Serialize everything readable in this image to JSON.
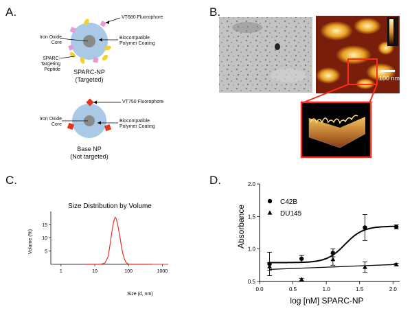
{
  "panels": {
    "a": {
      "letter": "A.",
      "targeted": {
        "fluorophore": "VT680 Fluorophore",
        "core": "Iron Oxide\nCore",
        "coating": "Biocompatible\nPolymer Coating",
        "peptide": "SPARC-Targeting\nPeptide",
        "name": "SPARC-NP",
        "status": "(Targeted)"
      },
      "base": {
        "fluorophore": "VT750 Fluorophore",
        "core": "Iron Oxide\nCore",
        "coating": "Biocompatible\nPolymer Coating",
        "name": "Base NP",
        "status": "(Not targeted)"
      }
    },
    "b": {
      "letter": "B.",
      "scalebar": "100 nm"
    },
    "c": {
      "letter": "C."
    },
    "d": {
      "letter": "D."
    }
  },
  "chart_data": [
    {
      "type": "line",
      "title": "Size Distribution by Volume",
      "xlabel": "Size (d, nm)",
      "ylabel": "Volume (%)",
      "xscale": "log",
      "xlim": [
        0.5,
        1500
      ],
      "ylim": [
        0,
        20
      ],
      "xticks": [
        1,
        10,
        100,
        1000
      ],
      "yticks": [
        5,
        10,
        15
      ],
      "color": "#e8302a",
      "series": [
        {
          "x": [
            5,
            15,
            20,
            25,
            28,
            32,
            36,
            40,
            43,
            47,
            52,
            57,
            62,
            68,
            75,
            82,
            90,
            100,
            120,
            150,
            500
          ],
          "y": [
            0,
            0,
            0.5,
            3,
            7,
            12,
            16,
            17.8,
            17.3,
            15.5,
            12.5,
            9.5,
            6.5,
            4,
            2.2,
            1,
            0.4,
            0.1,
            0,
            0,
            0
          ]
        }
      ]
    },
    {
      "type": "scatter",
      "xlabel": "log [nM] SPARC-NP",
      "ylabel": "Absorbance",
      "xlim": [
        0.0,
        2.1
      ],
      "ylim": [
        0.5,
        2.0
      ],
      "xticks": [
        "0.0",
        "0.5",
        "1.0",
        "1.5",
        "2.0"
      ],
      "yticks": [
        "0.5",
        "1.0",
        "1.5",
        "2.0"
      ],
      "legend_position": "top-left",
      "series": [
        {
          "name": "C42B",
          "marker": "circle",
          "points": [
            {
              "x": 0.15,
              "y": 0.77,
              "err": 0.18
            },
            {
              "x": 0.63,
              "y": 0.85,
              "err": 0.05
            },
            {
              "x": 1.1,
              "y": 0.94,
              "err": 0.06
            },
            {
              "x": 1.58,
              "y": 1.33,
              "err": 0.2
            },
            {
              "x": 2.05,
              "y": 1.34,
              "err": 0.03
            }
          ],
          "fit": {
            "bottom": 0.79,
            "top": 1.35,
            "logEC50": 1.28,
            "hill": 3.2
          }
        },
        {
          "name": "DU145",
          "marker": "triangle",
          "points": [
            {
              "x": 0.15,
              "y": 0.73,
              "err": 0.06
            },
            {
              "x": 0.63,
              "y": 0.53,
              "err": 0.02
            },
            {
              "x": 1.1,
              "y": 0.84,
              "err": 0.09
            },
            {
              "x": 1.58,
              "y": 0.72,
              "err": 0.08
            },
            {
              "x": 2.05,
              "y": 0.76,
              "err": 0.02
            }
          ],
          "fit": {
            "slope": 0.04,
            "intercept": 0.68
          }
        }
      ]
    }
  ]
}
